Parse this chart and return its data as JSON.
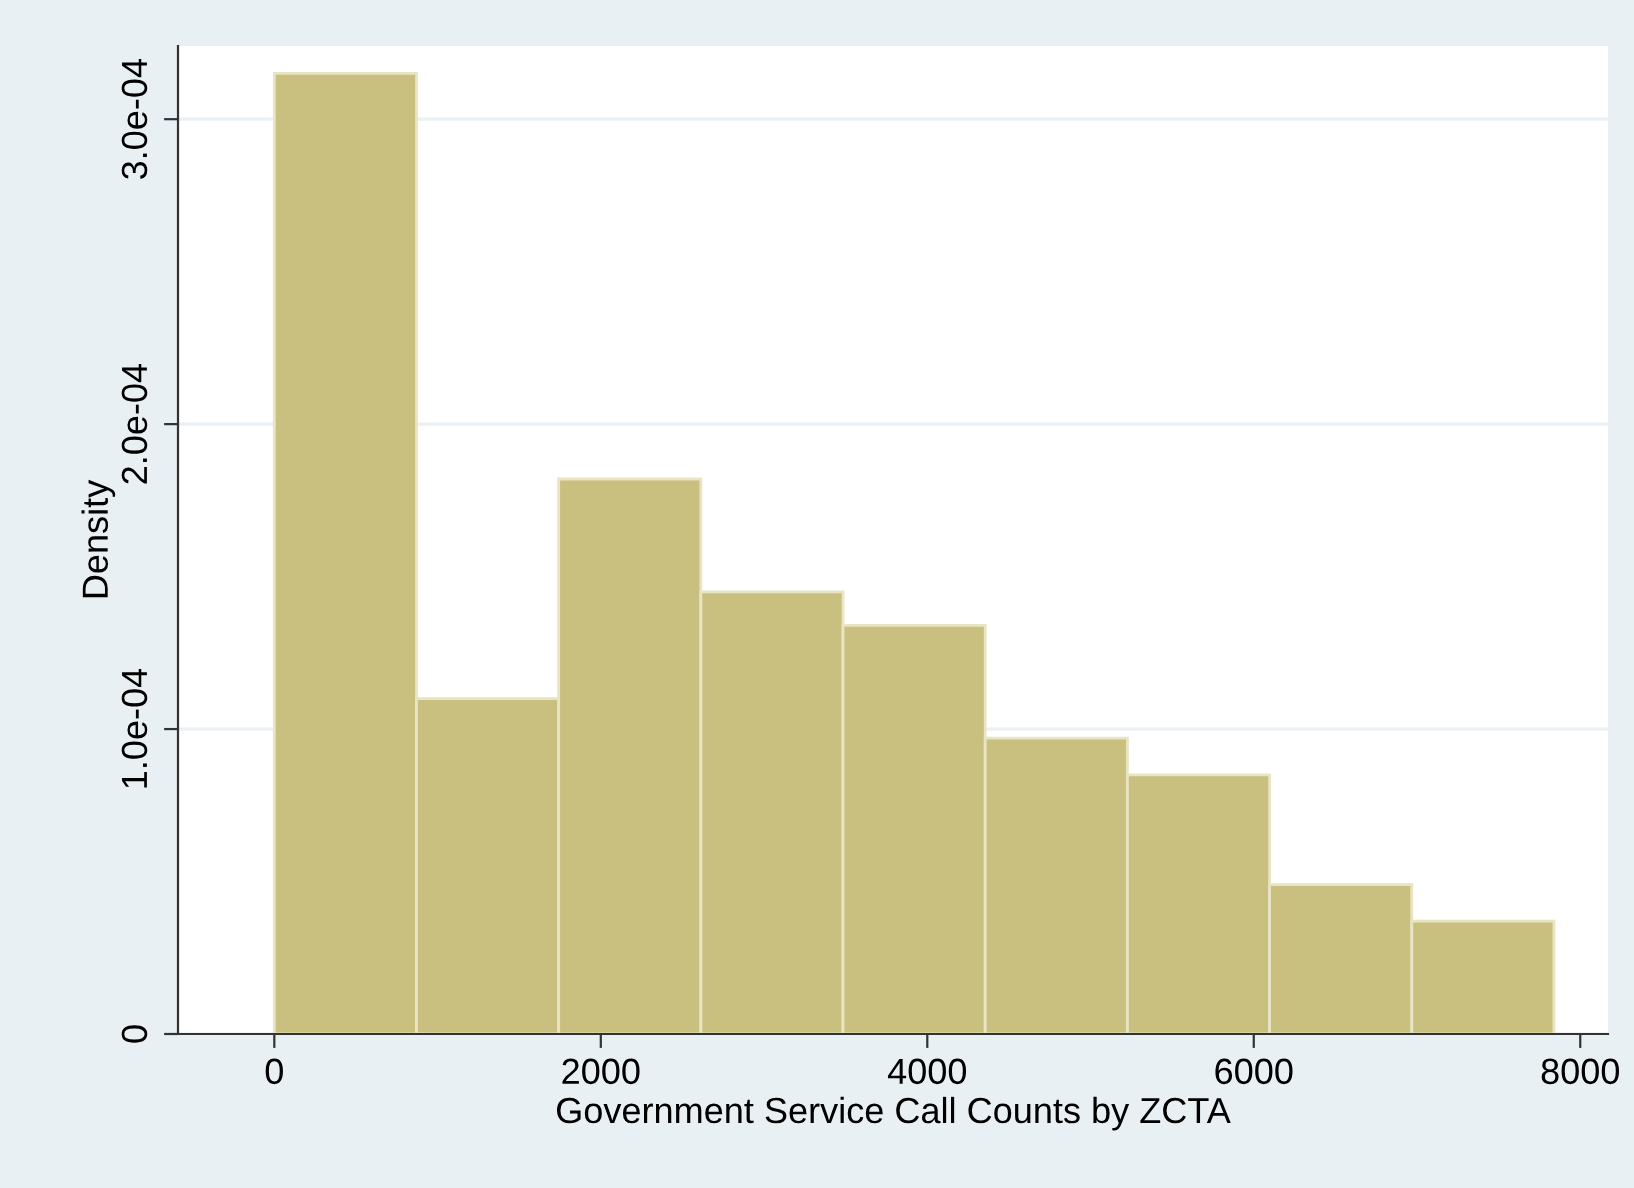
{
  "chart_data": {
    "type": "histogram",
    "xlabel": "Government Service Call Counts by ZCTA",
    "ylabel": "Density",
    "bins": [
      0,
      871,
      1742,
      2613,
      3484,
      4355,
      5226,
      6097,
      6968,
      7839
    ],
    "values": [
      0.000315,
      0.00011,
      0.000182,
      0.000145,
      0.000134,
      9.7e-05,
      8.5e-05,
      4.9e-05,
      3.7e-05
    ],
    "color": "#c9c07f",
    "xlim": [
      -590,
      8170
    ],
    "xticks": [
      0,
      2000,
      4000,
      6000,
      8000
    ],
    "ylim": [
      0,
      0.000324
    ],
    "yticks": [
      {
        "value": 0,
        "label": "0"
      },
      {
        "value": 0.0001,
        "label": "1.0e-04"
      },
      {
        "value": 0.0002,
        "label": "2.0e-04"
      },
      {
        "value": 0.0003,
        "label": "3.0e-04"
      }
    ],
    "grid": "y"
  }
}
